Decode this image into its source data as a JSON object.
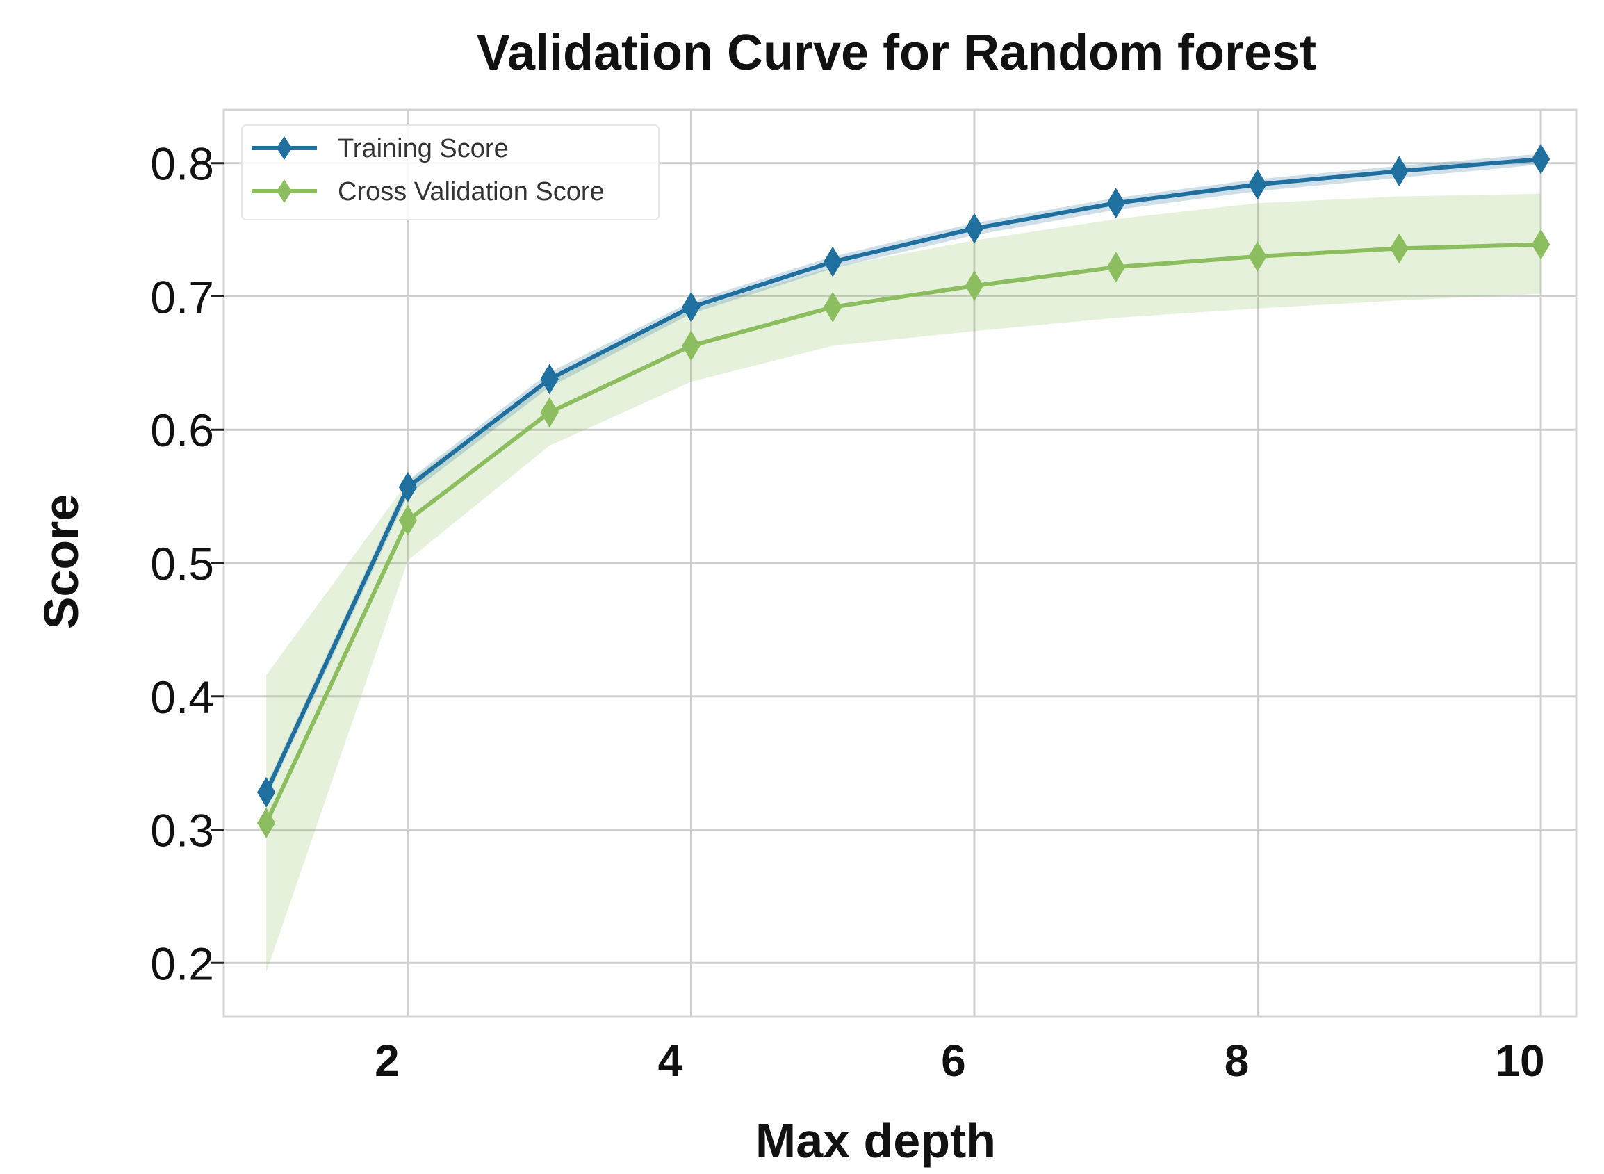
{
  "chart_data": {
    "type": "line",
    "title": "Validation Curve for Random forest",
    "xlabel": "Max depth",
    "ylabel": "Score",
    "x": [
      1,
      2,
      3,
      4,
      5,
      6,
      7,
      8,
      9,
      10
    ],
    "xlim": [
      0.7,
      10.25
    ],
    "ylim": [
      0.16,
      0.84
    ],
    "xticks": [
      2,
      4,
      6,
      8,
      10
    ],
    "yticks": [
      0.2,
      0.3,
      0.4,
      0.5,
      0.6,
      0.7,
      0.8
    ],
    "ytick_labels": [
      "0.2",
      "0.3",
      "0.4",
      "0.5",
      "0.6",
      "0.7",
      "0.8"
    ],
    "xtick_labels": [
      "2",
      "4",
      "6",
      "8",
      "10"
    ],
    "grid": true,
    "legend_position": "top-left",
    "series": [
      {
        "name": "Training Score",
        "color": "#1f6f9f",
        "marker": "diamond",
        "values": [
          0.328,
          0.557,
          0.638,
          0.692,
          0.726,
          0.751,
          0.77,
          0.784,
          0.794,
          0.803
        ],
        "band_lower": [
          0.323,
          0.551,
          0.632,
          0.687,
          0.721,
          0.746,
          0.765,
          0.779,
          0.789,
          0.799
        ],
        "band_upper": [
          0.333,
          0.562,
          0.643,
          0.696,
          0.73,
          0.755,
          0.774,
          0.788,
          0.798,
          0.807
        ]
      },
      {
        "name": "Cross Validation Score",
        "color": "#8cbd5e",
        "marker": "diamond",
        "values": [
          0.305,
          0.532,
          0.613,
          0.663,
          0.692,
          0.708,
          0.722,
          0.73,
          0.736,
          0.739
        ],
        "band_lower": [
          0.193,
          0.502,
          0.588,
          0.636,
          0.663,
          0.674,
          0.684,
          0.691,
          0.697,
          0.702
        ],
        "band_upper": [
          0.416,
          0.561,
          0.638,
          0.69,
          0.722,
          0.742,
          0.758,
          0.77,
          0.775,
          0.777
        ]
      }
    ]
  }
}
